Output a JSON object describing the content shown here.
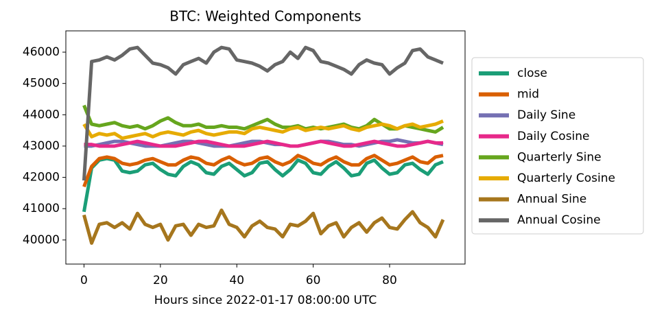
{
  "chart_data": {
    "type": "line",
    "title": "BTC: Weighted Components",
    "xlabel": "Hours since 2022-01-17 08:00:00 UTC",
    "x": [
      0,
      2,
      4,
      6,
      8,
      10,
      12,
      14,
      16,
      18,
      20,
      22,
      24,
      26,
      28,
      30,
      32,
      34,
      36,
      38,
      40,
      42,
      44,
      46,
      48,
      50,
      52,
      54,
      56,
      58,
      60,
      62,
      64,
      66,
      68,
      70,
      72,
      74,
      76,
      78,
      80,
      82,
      84,
      86,
      88,
      90,
      92,
      94
    ],
    "series": [
      {
        "name": "close",
        "color": "#1b9e77",
        "values": [
          40900,
          42300,
          42550,
          42600,
          42550,
          42200,
          42150,
          42200,
          42400,
          42450,
          42250,
          42100,
          42050,
          42350,
          42500,
          42400,
          42150,
          42100,
          42350,
          42450,
          42250,
          42050,
          42150,
          42450,
          42500,
          42250,
          42050,
          42250,
          42550,
          42450,
          42150,
          42100,
          42350,
          42500,
          42300,
          42050,
          42100,
          42450,
          42550,
          42300,
          42100,
          42150,
          42400,
          42450,
          42250,
          42100,
          42400,
          42500
        ]
      },
      {
        "name": "mid",
        "color": "#d95f02",
        "values": [
          41700,
          42350,
          42600,
          42650,
          42600,
          42450,
          42400,
          42450,
          42550,
          42600,
          42500,
          42400,
          42400,
          42550,
          42650,
          42600,
          42450,
          42400,
          42550,
          42650,
          42500,
          42400,
          42450,
          42600,
          42650,
          42500,
          42400,
          42500,
          42700,
          42600,
          42450,
          42400,
          42550,
          42650,
          42500,
          42400,
          42400,
          42600,
          42700,
          42550,
          42400,
          42450,
          42550,
          42650,
          42500,
          42450,
          42650,
          42700
        ]
      },
      {
        "name": "Daily Sine",
        "color": "#7570b3",
        "values": [
          43000,
          43000,
          43050,
          43100,
          43150,
          43150,
          43100,
          43050,
          43000,
          43000,
          43000,
          43050,
          43100,
          43150,
          43150,
          43100,
          43050,
          43000,
          43000,
          43000,
          43050,
          43100,
          43150,
          43150,
          43100,
          43050,
          43050,
          43000,
          43000,
          43050,
          43100,
          43150,
          43150,
          43100,
          43050,
          43050,
          43000,
          43050,
          43100,
          43150,
          43150,
          43200,
          43150,
          43100,
          43100,
          43150,
          43100,
          43050
        ]
      },
      {
        "name": "Daily Cosine",
        "color": "#e7298a",
        "values": [
          43050,
          43050,
          43000,
          43000,
          43000,
          43050,
          43100,
          43150,
          43100,
          43050,
          43000,
          43000,
          43000,
          43050,
          43100,
          43150,
          43150,
          43100,
          43050,
          43000,
          43000,
          43000,
          43050,
          43100,
          43150,
          43100,
          43050,
          43000,
          43000,
          43050,
          43100,
          43150,
          43100,
          43050,
          43000,
          43000,
          43050,
          43100,
          43150,
          43100,
          43050,
          43000,
          43000,
          43050,
          43100,
          43150,
          43100,
          43100
        ]
      },
      {
        "name": "Quarterly Sine",
        "color": "#66a61e",
        "values": [
          44300,
          43700,
          43650,
          43700,
          43750,
          43650,
          43600,
          43650,
          43550,
          43650,
          43800,
          43900,
          43750,
          43650,
          43650,
          43700,
          43600,
          43600,
          43650,
          43600,
          43600,
          43550,
          43650,
          43750,
          43850,
          43700,
          43600,
          43600,
          43650,
          43550,
          43600,
          43550,
          43600,
          43650,
          43700,
          43600,
          43550,
          43650,
          43850,
          43700,
          43550,
          43550,
          43650,
          43600,
          43550,
          43500,
          43450,
          43600
        ]
      },
      {
        "name": "Quarterly Cosine",
        "color": "#e6ab02",
        "values": [
          43700,
          43300,
          43400,
          43350,
          43400,
          43250,
          43300,
          43350,
          43400,
          43300,
          43400,
          43450,
          43400,
          43350,
          43450,
          43500,
          43400,
          43350,
          43400,
          43450,
          43450,
          43400,
          43550,
          43600,
          43550,
          43500,
          43450,
          43550,
          43600,
          43500,
          43550,
          43600,
          43550,
          43600,
          43650,
          43550,
          43500,
          43600,
          43650,
          43700,
          43650,
          43550,
          43650,
          43700,
          43600,
          43650,
          43700,
          43800
        ]
      },
      {
        "name": "Annual Sine",
        "color": "#a6761d",
        "values": [
          40800,
          39900,
          40500,
          40550,
          40400,
          40550,
          40350,
          40850,
          40500,
          40400,
          40500,
          40000,
          40450,
          40500,
          40150,
          40500,
          40400,
          40450,
          40950,
          40500,
          40400,
          40100,
          40450,
          40600,
          40400,
          40350,
          40100,
          40500,
          40450,
          40600,
          40850,
          40200,
          40450,
          40550,
          40100,
          40400,
          40550,
          40250,
          40550,
          40700,
          40400,
          40350,
          40650,
          40900,
          40550,
          40400,
          40100,
          40650
        ]
      },
      {
        "name": "Annual Cosine",
        "color": "#666666",
        "values": [
          41900,
          45700,
          45750,
          45850,
          45750,
          45900,
          46100,
          46150,
          45900,
          45650,
          45600,
          45500,
          45300,
          45600,
          45700,
          45800,
          45650,
          46000,
          46150,
          46100,
          45750,
          45700,
          45650,
          45550,
          45400,
          45600,
          45700,
          46000,
          45800,
          46150,
          46050,
          45700,
          45650,
          45550,
          45450,
          45300,
          45600,
          45750,
          45650,
          45600,
          45300,
          45500,
          45650,
          46050,
          46100,
          45850,
          45750,
          45650
        ]
      }
    ],
    "xlim": [
      -4.75,
      99.75
    ],
    "xticks": [
      0,
      20,
      40,
      60,
      80
    ],
    "ylim": [
      39230,
      46680
    ],
    "yticks": [
      40000,
      41000,
      42000,
      43000,
      44000,
      45000,
      46000
    ],
    "legend": "right"
  }
}
